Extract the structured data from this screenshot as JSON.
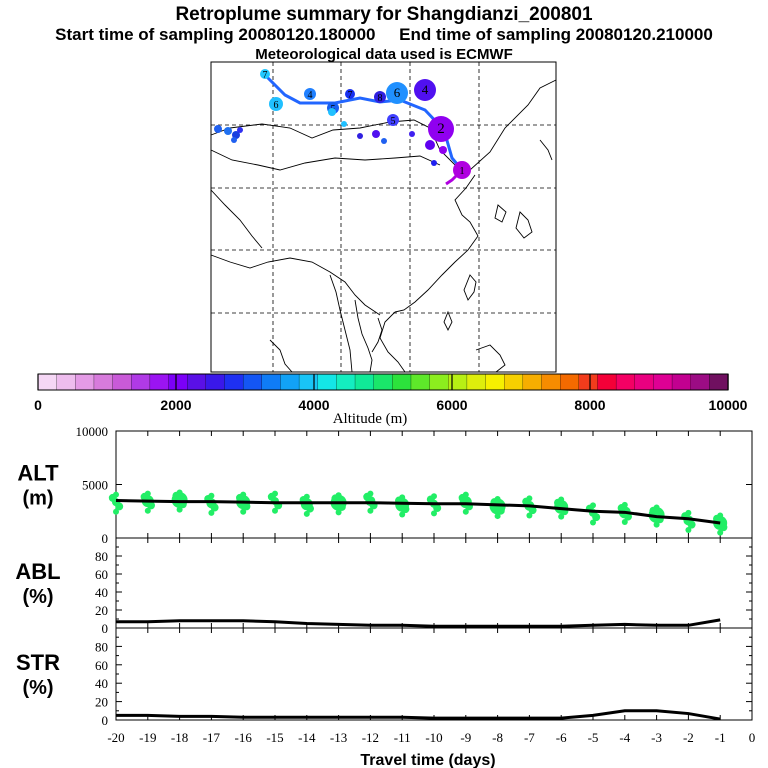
{
  "header": {
    "title": "Retroplume summary for Shangdianzi_200801",
    "subtitle": "Start time of sampling 20080120.180000     End time of sampling 20080120.210000",
    "met_note": "Meteorological data used is ECMWF"
  },
  "colorbar": {
    "ticks": [
      "0",
      "2000",
      "4000",
      "6000",
      "8000",
      "10000"
    ],
    "label": "Altitude (m)",
    "colors": [
      "#f5d7f5",
      "#eebdee",
      "#e49be6",
      "#d77bdc",
      "#c95ad8",
      "#b03ae6",
      "#9b14f2",
      "#7c00f8",
      "#5a10e6",
      "#3a18ea",
      "#1e30f2",
      "#1456f4",
      "#0f7cf6",
      "#12a2f6",
      "#19c4f6",
      "#14e6e6",
      "#14eec0",
      "#10ea98",
      "#1ae66a",
      "#2ce23c",
      "#5ee82a",
      "#8cee1e",
      "#b8f014",
      "#deee0c",
      "#f6f000",
      "#f6d000",
      "#f6ae00",
      "#f68c00",
      "#f46a00",
      "#f23c1c",
      "#f40038",
      "#f40064",
      "#ea0080",
      "#de0094",
      "#c20090",
      "#9c0c84",
      "#701060"
    ]
  },
  "map": {
    "trajectory_markers": [
      {
        "label": "1",
        "color": "#b000e0",
        "r": 9
      },
      {
        "label": "2",
        "color": "#9000f0",
        "r": 13
      },
      {
        "label": "3",
        "color": "#6000f0",
        "r": 7
      },
      {
        "label": "4",
        "color": "#5010f0",
        "r": 11
      },
      {
        "label": "5",
        "color": "#4040ff",
        "r": 6
      },
      {
        "label": "6",
        "color": "#2090ff",
        "r": 11
      },
      {
        "label": "7",
        "color": "#1830f0",
        "r": 5
      },
      {
        "label": "8",
        "color": "#3020e0",
        "r": 6
      },
      {
        "label": "4",
        "color": "#2080ff",
        "r": 6
      },
      {
        "label": "6",
        "color": "#20c0ff",
        "r": 7
      },
      {
        "label": "5",
        "color": "#1860f0",
        "r": 6
      },
      {
        "label": "7",
        "color": "#20c8ff",
        "r": 5
      }
    ]
  },
  "chart_data": [
    {
      "type": "line",
      "name": "ALT",
      "ylabel_line1": "ALT",
      "ylabel_line2": "(m)",
      "ylim": [
        0,
        10000
      ],
      "yticks": [
        "10000",
        "5000",
        "0"
      ],
      "x": [
        -20,
        -19,
        -18,
        -17,
        -16,
        -15,
        -14,
        -13,
        -12,
        -11,
        -10,
        -9,
        -8,
        -7,
        -6,
        -5,
        -4,
        -3,
        -2,
        -1
      ],
      "median_altitude": [
        3500,
        3450,
        3400,
        3400,
        3350,
        3300,
        3300,
        3300,
        3300,
        3250,
        3200,
        3200,
        3100,
        3000,
        2750,
        2500,
        2400,
        2000,
        1800,
        1400
      ],
      "scatter_color": "#22ee66"
    },
    {
      "type": "line",
      "name": "ABL",
      "ylabel_line1": "ABL",
      "ylabel_line2": "(%)",
      "ylim": [
        0,
        100
      ],
      "yticks": [
        "80",
        "60",
        "40",
        "20",
        "0"
      ],
      "x": [
        -20,
        -19,
        -18,
        -17,
        -16,
        -15,
        -14,
        -13,
        -12,
        -11,
        -10,
        -9,
        -8,
        -7,
        -6,
        -5,
        -4,
        -3,
        -2,
        -1
      ],
      "values": [
        7,
        7,
        8,
        8,
        8,
        7,
        5,
        4,
        3,
        3,
        2,
        2,
        2,
        2,
        2,
        3,
        4,
        3,
        3,
        9
      ]
    },
    {
      "type": "line",
      "name": "STR",
      "ylabel_line1": "STR",
      "ylabel_line2": "(%)",
      "ylim": [
        0,
        100
      ],
      "yticks": [
        "80",
        "60",
        "40",
        "20",
        "0"
      ],
      "x": [
        -20,
        -19,
        -18,
        -17,
        -16,
        -15,
        -14,
        -13,
        -12,
        -11,
        -10,
        -9,
        -8,
        -7,
        -6,
        -5,
        -4,
        -3,
        -2,
        -1
      ],
      "values": [
        5,
        5,
        4,
        4,
        3,
        3,
        3,
        3,
        3,
        3,
        2,
        2,
        2,
        2,
        2,
        5,
        10,
        10,
        7,
        1
      ],
      "xlabel": "Travel time (days)",
      "xticks": [
        "-20",
        "-19",
        "-18",
        "-17",
        "-16",
        "-15",
        "-14",
        "-13",
        "-12",
        "-11",
        "-10",
        "-9",
        "-8",
        "-7",
        "-6",
        "-5",
        "-4",
        "-3",
        "-2",
        "-1",
        "0"
      ]
    }
  ]
}
